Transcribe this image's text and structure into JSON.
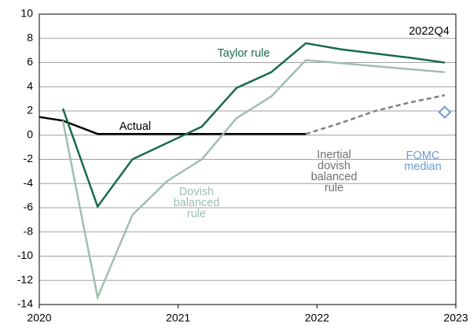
{
  "chart_data": {
    "type": "line",
    "annotation": "2022Q4",
    "xlim": [
      2020,
      2023
    ],
    "xticks": [
      2020,
      2021,
      2022,
      2023
    ],
    "ylim": [
      -14,
      10
    ],
    "yticks": [
      -14,
      -12,
      -10,
      -8,
      -6,
      -4,
      -2,
      0,
      2,
      4,
      6,
      8,
      10
    ],
    "grid": true,
    "series": [
      {
        "name": "Actual",
        "color": "#000000",
        "dashed": false,
        "x": [
          2020,
          2020.17,
          2020.42,
          2021.92
        ],
        "values": [
          1.5,
          1.2,
          0.1,
          0.1
        ]
      },
      {
        "name": "Taylor rule",
        "color": "#1a6b4a",
        "dashed": false,
        "x": [
          2020.17,
          2020.42,
          2020.67,
          2021.17,
          2021.42,
          2021.67,
          2021.92,
          2022.17,
          2022.67,
          2022.92
        ],
        "values": [
          2.2,
          -5.9,
          -2.0,
          0.7,
          3.9,
          5.2,
          7.6,
          7.1,
          6.4,
          6.0
        ]
      },
      {
        "name": "Dovish balanced rule",
        "color": "#9fbfae",
        "dashed": false,
        "x": [
          2020.17,
          2020.42,
          2020.67,
          2020.92,
          2021.17,
          2021.42,
          2021.67,
          2021.92,
          2022.92
        ],
        "values": [
          1.2,
          -13.4,
          -6.6,
          -3.8,
          -2.0,
          1.4,
          3.2,
          6.2,
          5.2
        ]
      },
      {
        "name": "Inertial dovish balanced rule",
        "color": "#808080",
        "dashed": true,
        "x": [
          2021.92,
          2022.17,
          2022.42,
          2022.67,
          2022.92
        ],
        "values": [
          0.1,
          1.0,
          2.0,
          2.7,
          3.3
        ]
      }
    ],
    "points": [
      {
        "name": "FOMC median",
        "color": "#6f9bd1",
        "x": 2022.92,
        "value": 1.9
      }
    ]
  }
}
